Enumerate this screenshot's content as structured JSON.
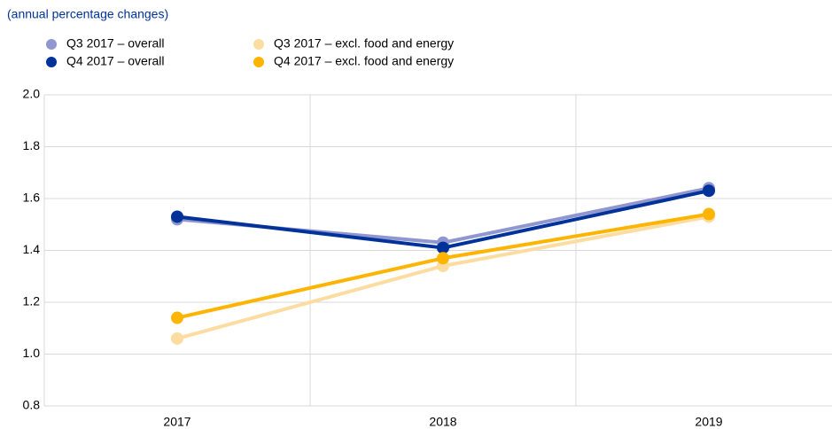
{
  "chart_data": {
    "type": "line",
    "subtitle": "(annual percentage changes)",
    "categories": [
      "2017",
      "2018",
      "2019"
    ],
    "series": [
      {
        "name": "Q3 2017 – overall",
        "color": "#8f96d0",
        "values": [
          1.52,
          1.43,
          1.64
        ]
      },
      {
        "name": "Q4 2017 – overall",
        "color": "#003299",
        "values": [
          1.53,
          1.41,
          1.63
        ]
      },
      {
        "name": "Q3 2017 – excl. food and energy",
        "color": "#fcdca0",
        "values": [
          1.06,
          1.34,
          1.53
        ]
      },
      {
        "name": "Q4 2017 – excl. food and energy",
        "color": "#ffb400",
        "values": [
          1.14,
          1.37,
          1.54
        ]
      }
    ],
    "ylim": [
      0.8,
      2.0
    ],
    "yticks": [
      {
        "value": 0.8,
        "label": "0.8"
      },
      {
        "value": 1.0,
        "label": "1.0"
      },
      {
        "value": 1.2,
        "label": "1.2"
      },
      {
        "value": 1.4,
        "label": "1.4"
      },
      {
        "value": 1.6,
        "label": "1.6"
      },
      {
        "value": 1.8,
        "label": "1.8"
      },
      {
        "value": 2.0,
        "label": "2.0"
      }
    ],
    "grid": true
  }
}
